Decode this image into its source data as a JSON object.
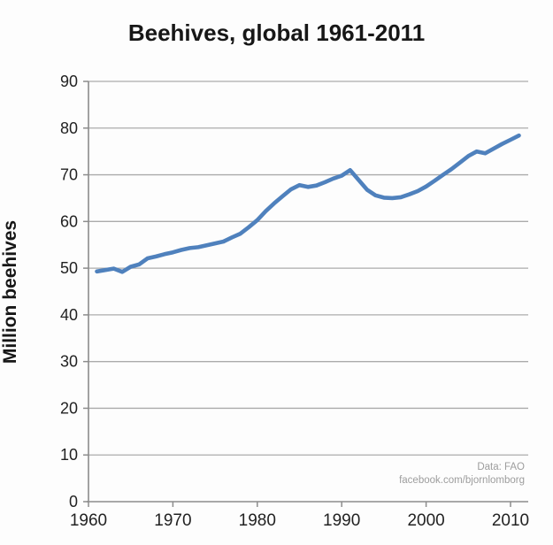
{
  "title": "Beehives, global 1961-2011",
  "y_axis_label": "Million beehives",
  "watermark": {
    "line1": "Data: FAO",
    "line2": "facebook.com/bjornlomborg"
  },
  "colors": {
    "line": "#4f81bd",
    "grid": "#ababab",
    "axis": "#8c8c8c",
    "tick_text": "#222222",
    "watermark": "#9d9d9d",
    "background": "#fdfdfd"
  },
  "chart_data": {
    "type": "line",
    "title": "Beehives, global 1961-2011",
    "xlabel": "",
    "ylabel": "Million beehives",
    "xlim": [
      1960,
      2012
    ],
    "ylim": [
      0,
      90
    ],
    "x_ticks": [
      1960,
      1970,
      1980,
      1990,
      2000,
      2010
    ],
    "y_ticks": [
      0,
      10,
      20,
      30,
      40,
      50,
      60,
      70,
      80,
      90
    ],
    "grid": "horizontal",
    "legend": "none",
    "annotations": [
      "Data: FAO",
      "facebook.com/bjornlomborg"
    ],
    "x": [
      1961,
      1962,
      1963,
      1964,
      1965,
      1966,
      1967,
      1968,
      1969,
      1970,
      1971,
      1972,
      1973,
      1974,
      1975,
      1976,
      1977,
      1978,
      1979,
      1980,
      1981,
      1982,
      1983,
      1984,
      1985,
      1986,
      1987,
      1988,
      1989,
      1990,
      1991,
      1992,
      1993,
      1994,
      1995,
      1996,
      1997,
      1998,
      1999,
      2000,
      2001,
      2002,
      2003,
      2004,
      2005,
      2006,
      2007,
      2008,
      2009,
      2010,
      2011
    ],
    "values": [
      49.3,
      49.6,
      49.9,
      49.2,
      50.3,
      50.8,
      52.1,
      52.5,
      53.0,
      53.4,
      53.9,
      54.3,
      54.5,
      54.9,
      55.3,
      55.7,
      56.6,
      57.4,
      58.8,
      60.3,
      62.2,
      63.9,
      65.4,
      66.9,
      67.8,
      67.4,
      67.7,
      68.4,
      69.2,
      69.8,
      71.0,
      68.9,
      66.8,
      65.6,
      65.1,
      65.0,
      65.2,
      65.8,
      66.5,
      67.5,
      68.7,
      70.0,
      71.2,
      72.6,
      74.0,
      75.0,
      74.6,
      75.6,
      76.6,
      77.5,
      78.4
    ]
  }
}
